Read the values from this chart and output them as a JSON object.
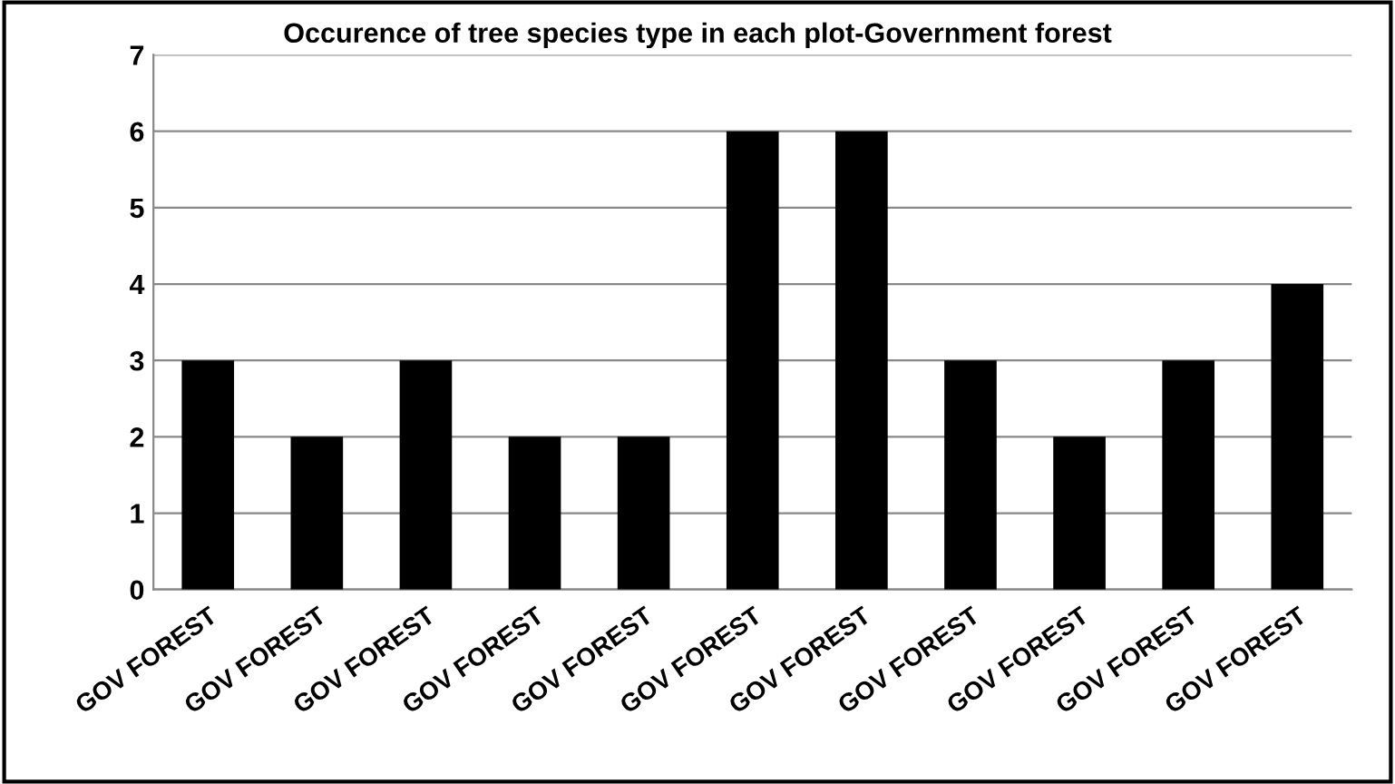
{
  "chart_data": {
    "type": "bar",
    "title": "Occurence of tree species type in each plot-Government forest",
    "categories": [
      "GOV FOREST",
      "GOV FOREST",
      "GOV FOREST",
      "GOV FOREST",
      "GOV FOREST",
      "GOV FOREST",
      "GOV FOREST",
      "GOV FOREST",
      "GOV FOREST",
      "GOV FOREST",
      "GOV FOREST"
    ],
    "values": [
      3,
      2,
      3,
      2,
      2,
      6,
      6,
      3,
      2,
      3,
      4
    ],
    "color": "#000000",
    "ylim": [
      0,
      7
    ],
    "yticks": [
      0,
      1,
      2,
      3,
      4,
      5,
      6,
      7
    ],
    "grid": "y",
    "legend": false
  }
}
